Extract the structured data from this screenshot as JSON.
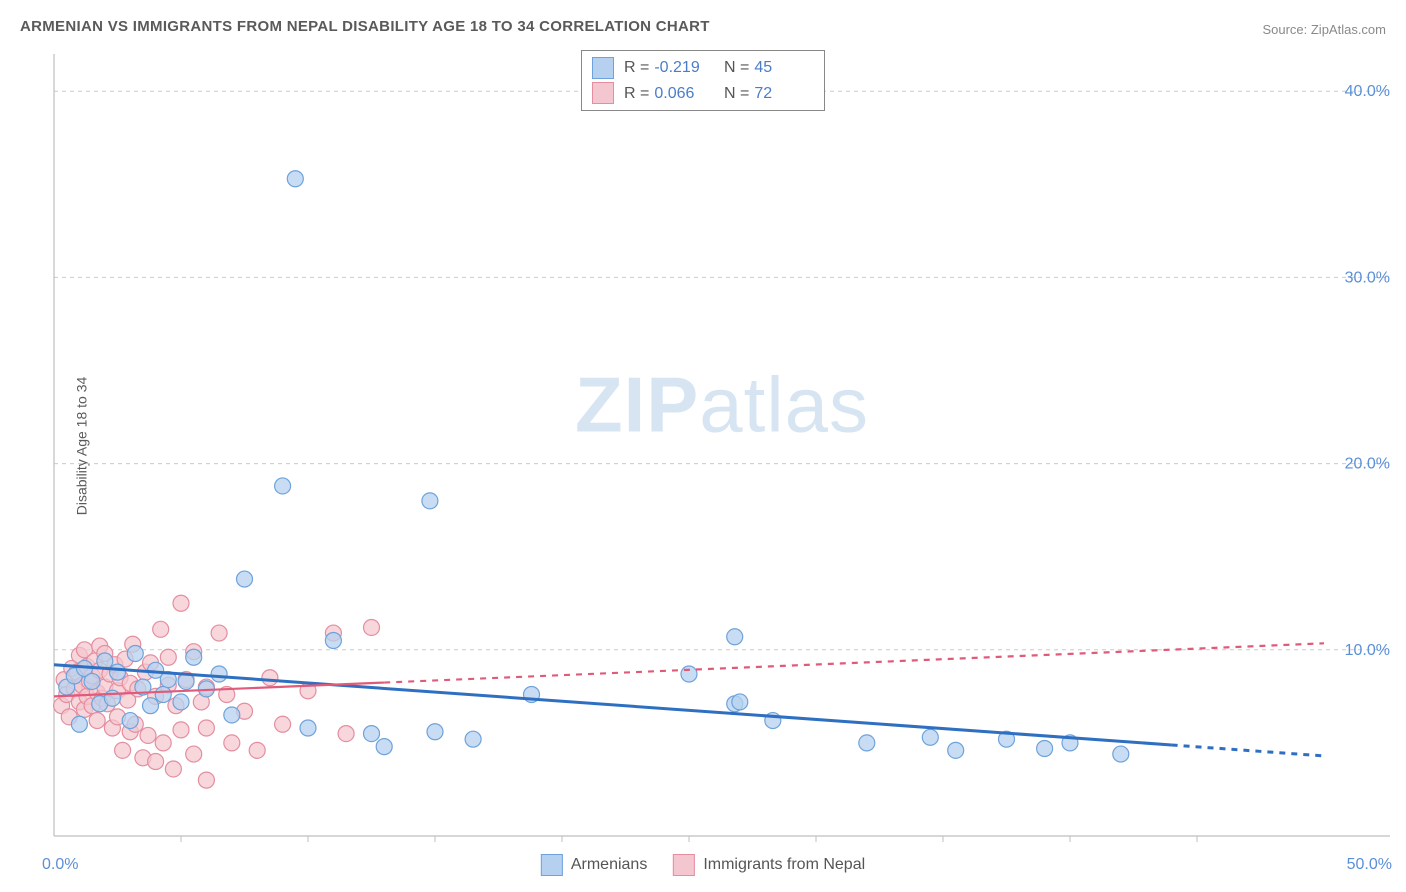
{
  "title": "ARMENIAN VS IMMIGRANTS FROM NEPAL DISABILITY AGE 18 TO 34 CORRELATION CHART",
  "source_label": "Source: ",
  "source_value": "ZipAtlas.com",
  "ylabel": "Disability Age 18 to 34",
  "watermark_bold": "ZIP",
  "watermark_light": "atlas",
  "chart": {
    "type": "scatter",
    "xlim": [
      0,
      50
    ],
    "ylim": [
      0,
      42
    ],
    "xtick_minor_step": 5,
    "ytick_step": 10,
    "xtick_labels": {
      "0": "0.0%",
      "50": "50.0%"
    },
    "ytick_labels": {
      "10": "10.0%",
      "20": "20.0%",
      "30": "30.0%",
      "40": "40.0%"
    },
    "background_color": "#ffffff",
    "grid_color": "#cccccc",
    "axis_color": "#bfbfbf",
    "tick_label_color": "#5b8fd6",
    "tick_label_fontsize": 16,
    "marker_radius": 8,
    "marker_stroke_width": 1.2,
    "series": [
      {
        "name": "Armenians",
        "fill": "#b6d1ef",
        "stroke": "#6ea2db",
        "fill_opacity": 0.75,
        "trend": {
          "slope": -0.098,
          "intercept": 9.2,
          "solid_until_x": 44,
          "stroke": "#2f6fc1",
          "stroke_width": 3,
          "dash": "6 6"
        },
        "R": -0.219,
        "N": 45,
        "points": [
          [
            0.5,
            8.0
          ],
          [
            0.8,
            8.6
          ],
          [
            1.0,
            6.0
          ],
          [
            1.2,
            9.0
          ],
          [
            1.5,
            8.3
          ],
          [
            1.8,
            7.1
          ],
          [
            2.0,
            9.4
          ],
          [
            2.3,
            7.4
          ],
          [
            2.5,
            8.8
          ],
          [
            3.0,
            6.2
          ],
          [
            3.2,
            9.8
          ],
          [
            3.5,
            8.0
          ],
          [
            3.8,
            7.0
          ],
          [
            4.0,
            8.9
          ],
          [
            4.3,
            7.6
          ],
          [
            4.5,
            8.4
          ],
          [
            5.0,
            7.2
          ],
          [
            5.2,
            8.3
          ],
          [
            5.5,
            9.6
          ],
          [
            6.0,
            7.9
          ],
          [
            6.5,
            8.7
          ],
          [
            7.0,
            6.5
          ],
          [
            7.5,
            13.8
          ],
          [
            9.0,
            18.8
          ],
          [
            9.5,
            35.3
          ],
          [
            10.0,
            5.8
          ],
          [
            11.0,
            10.5
          ],
          [
            12.5,
            5.5
          ],
          [
            13.0,
            4.8
          ],
          [
            14.8,
            18.0
          ],
          [
            15.0,
            5.6
          ],
          [
            16.5,
            5.2
          ],
          [
            18.8,
            7.6
          ],
          [
            25.0,
            8.7
          ],
          [
            26.8,
            7.1
          ],
          [
            26.8,
            10.7
          ],
          [
            27.0,
            7.2
          ],
          [
            28.3,
            6.2
          ],
          [
            32.0,
            5.0
          ],
          [
            34.5,
            5.3
          ],
          [
            35.5,
            4.6
          ],
          [
            37.5,
            5.2
          ],
          [
            39.0,
            4.7
          ],
          [
            42.0,
            4.4
          ],
          [
            40.0,
            5.0
          ]
        ]
      },
      {
        "name": "Immigrants from Nepal",
        "fill": "#f4c6cf",
        "stroke": "#e48ea0",
        "fill_opacity": 0.72,
        "trend": {
          "slope": 0.057,
          "intercept": 7.5,
          "solid_until_x": 13,
          "stroke": "#e05a7a",
          "stroke_width": 2.2,
          "dash": "6 6"
        },
        "R": 0.066,
        "N": 72,
        "points": [
          [
            0.3,
            7.0
          ],
          [
            0.4,
            8.4
          ],
          [
            0.5,
            7.6
          ],
          [
            0.6,
            6.4
          ],
          [
            0.7,
            9.0
          ],
          [
            0.8,
            7.9
          ],
          [
            0.9,
            8.8
          ],
          [
            1.0,
            7.2
          ],
          [
            1.0,
            9.7
          ],
          [
            1.1,
            8.1
          ],
          [
            1.2,
            6.8
          ],
          [
            1.2,
            10.0
          ],
          [
            1.3,
            7.5
          ],
          [
            1.3,
            9.1
          ],
          [
            1.4,
            8.3
          ],
          [
            1.5,
            7.0
          ],
          [
            1.5,
            8.6
          ],
          [
            1.6,
            9.4
          ],
          [
            1.7,
            7.7
          ],
          [
            1.7,
            6.2
          ],
          [
            1.8,
            8.9
          ],
          [
            1.8,
            10.2
          ],
          [
            1.9,
            7.4
          ],
          [
            2.0,
            8.0
          ],
          [
            2.0,
            9.8
          ],
          [
            2.1,
            7.1
          ],
          [
            2.2,
            8.7
          ],
          [
            2.3,
            5.8
          ],
          [
            2.4,
            9.2
          ],
          [
            2.5,
            7.8
          ],
          [
            2.5,
            6.4
          ],
          [
            2.6,
            8.5
          ],
          [
            2.7,
            4.6
          ],
          [
            2.8,
            9.5
          ],
          [
            2.9,
            7.3
          ],
          [
            3.0,
            8.2
          ],
          [
            3.0,
            5.6
          ],
          [
            3.1,
            10.3
          ],
          [
            3.2,
            6.0
          ],
          [
            3.3,
            7.9
          ],
          [
            3.5,
            4.2
          ],
          [
            3.6,
            8.8
          ],
          [
            3.7,
            5.4
          ],
          [
            3.8,
            9.3
          ],
          [
            4.0,
            7.5
          ],
          [
            4.0,
            4.0
          ],
          [
            4.2,
            11.1
          ],
          [
            4.3,
            5.0
          ],
          [
            4.5,
            8.1
          ],
          [
            4.5,
            9.6
          ],
          [
            4.7,
            3.6
          ],
          [
            4.8,
            7.0
          ],
          [
            5.0,
            12.5
          ],
          [
            5.0,
            5.7
          ],
          [
            5.2,
            8.4
          ],
          [
            5.5,
            4.4
          ],
          [
            5.5,
            9.9
          ],
          [
            5.8,
            7.2
          ],
          [
            6.0,
            5.8
          ],
          [
            6.0,
            8.0
          ],
          [
            6.0,
            3.0
          ],
          [
            6.5,
            10.9
          ],
          [
            6.8,
            7.6
          ],
          [
            7.0,
            5.0
          ],
          [
            7.5,
            6.7
          ],
          [
            8.0,
            4.6
          ],
          [
            8.5,
            8.5
          ],
          [
            9.0,
            6.0
          ],
          [
            10.0,
            7.8
          ],
          [
            11.0,
            10.9
          ],
          [
            11.5,
            5.5
          ],
          [
            12.5,
            11.2
          ]
        ]
      }
    ]
  },
  "legend_top": {
    "rows": [
      {
        "swatch_fill": "#b6d1ef",
        "swatch_stroke": "#6ea2db",
        "R_label": "R =",
        "R": "-0.219",
        "N_label": "N =",
        "N": "45"
      },
      {
        "swatch_fill": "#f4c6cf",
        "swatch_stroke": "#e48ea0",
        "R_label": "R =",
        "R": "0.066",
        "N_label": "N =",
        "N": "72"
      }
    ]
  },
  "legend_bottom": {
    "items": [
      {
        "swatch_fill": "#b6d1ef",
        "swatch_stroke": "#6ea2db",
        "label": "Armenians"
      },
      {
        "swatch_fill": "#f4c6cf",
        "swatch_stroke": "#e48ea0",
        "label": "Immigrants from Nepal"
      }
    ]
  }
}
